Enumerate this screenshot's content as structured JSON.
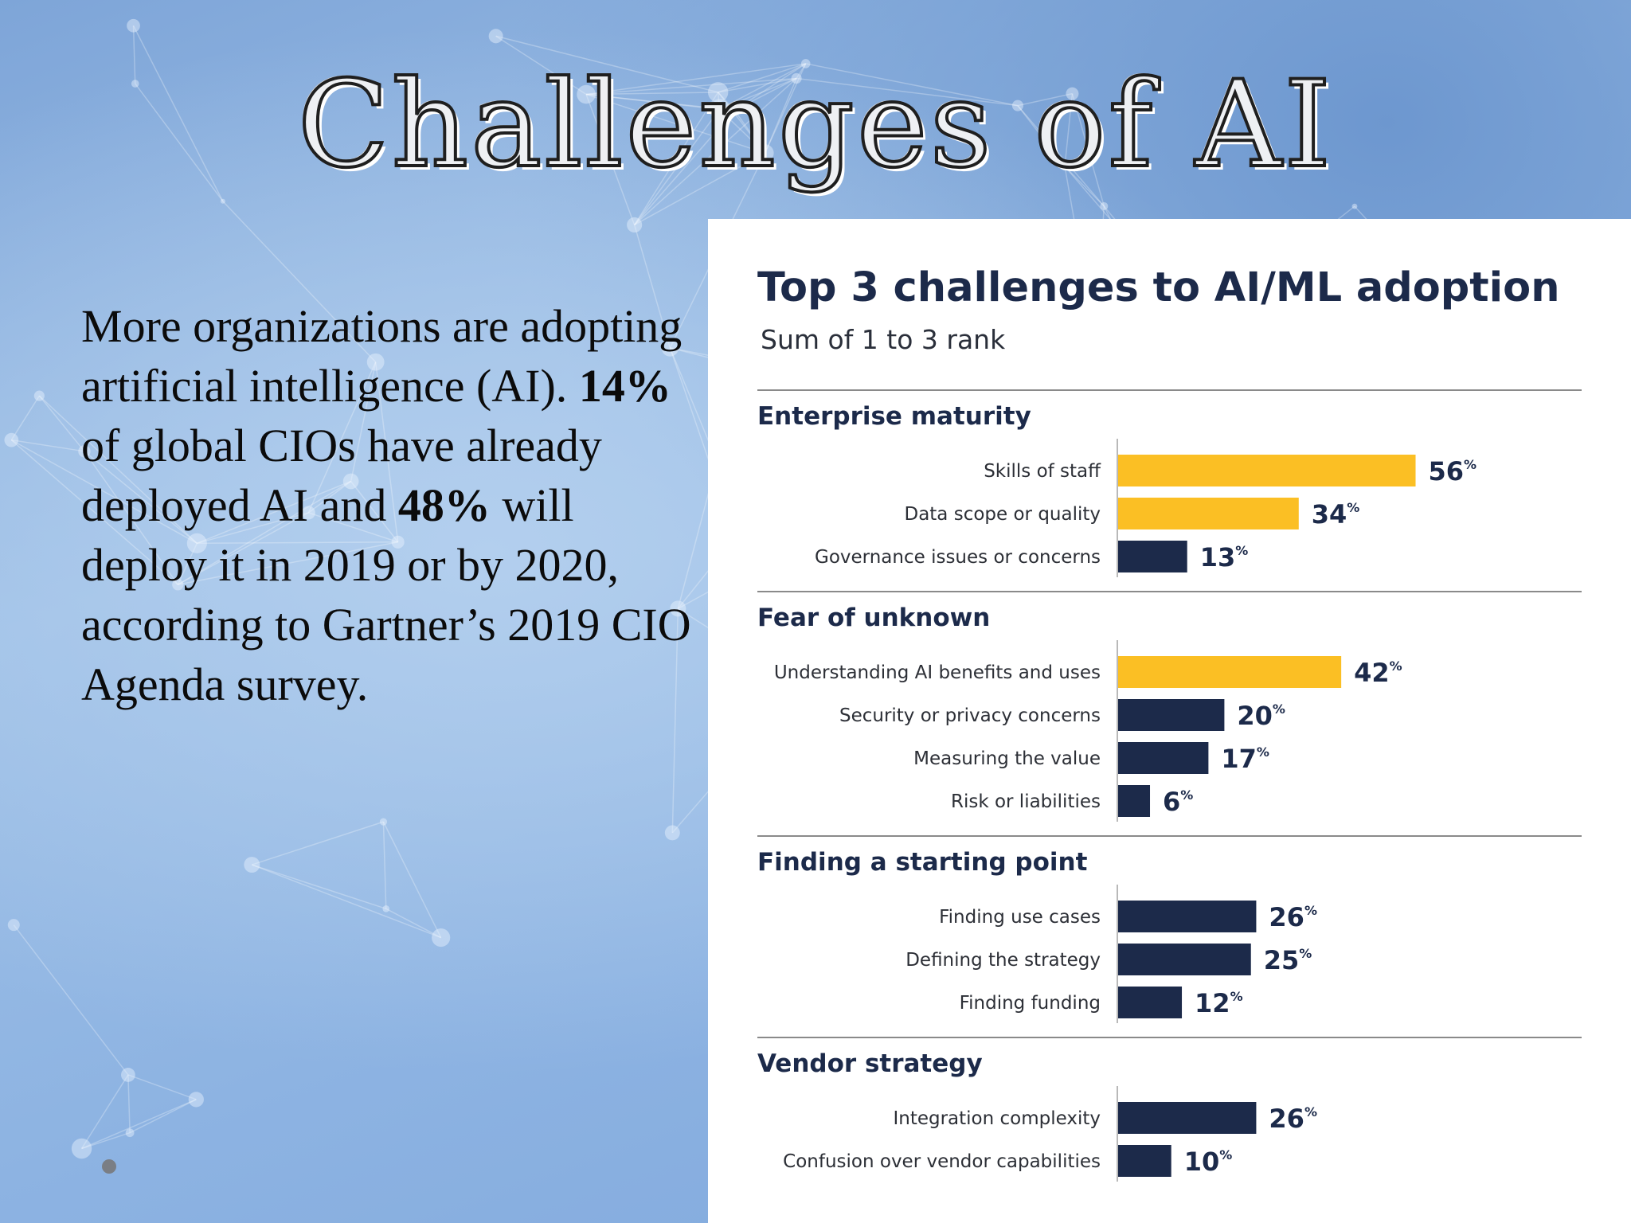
{
  "slide": {
    "title": "Challenges of AI",
    "body": {
      "intro": "More organizations are adopting artificial intelligence (AI). ",
      "stat1": "14%",
      "mid1": " of global CIOs have already deployed AI and ",
      "stat2": "48%",
      "end": " will deploy it in 2019 or by 2020, according to Gartner’s 2019 CIO Agenda survey."
    }
  },
  "colors": {
    "highlight": "#fbbf24",
    "bar": "#1c2a4a",
    "divider": "#8a8a8a"
  },
  "chart_data": {
    "type": "bar",
    "orientation": "horizontal",
    "title": "Top 3 challenges to AI/ML adoption",
    "subtitle": "Sum of 1 to 3 rank",
    "value_suffix": "%",
    "xlim": [
      0,
      100
    ],
    "groups": [
      {
        "name": "Enterprise maturity",
        "items": [
          {
            "label": "Skills of staff",
            "value": 56,
            "highlight": true
          },
          {
            "label": "Data scope or quality",
            "value": 34,
            "highlight": true
          },
          {
            "label": "Governance issues or concerns",
            "value": 13,
            "highlight": false
          }
        ]
      },
      {
        "name": "Fear of unknown",
        "items": [
          {
            "label": "Understanding AI benefits and uses",
            "value": 42,
            "highlight": true
          },
          {
            "label": "Security or privacy concerns",
            "value": 20,
            "highlight": false
          },
          {
            "label": "Measuring the value",
            "value": 17,
            "highlight": false
          },
          {
            "label": "Risk or liabilities",
            "value": 6,
            "highlight": false
          }
        ]
      },
      {
        "name": "Finding a starting point",
        "items": [
          {
            "label": "Finding use cases",
            "value": 26,
            "highlight": false
          },
          {
            "label": "Defining the strategy",
            "value": 25,
            "highlight": false
          },
          {
            "label": "Finding funding",
            "value": 12,
            "highlight": false
          }
        ]
      },
      {
        "name": "Vendor strategy",
        "items": [
          {
            "label": "Integration complexity",
            "value": 26,
            "highlight": false
          },
          {
            "label": "Confusion over vendor capabilities",
            "value": 10,
            "highlight": false
          }
        ]
      }
    ]
  }
}
